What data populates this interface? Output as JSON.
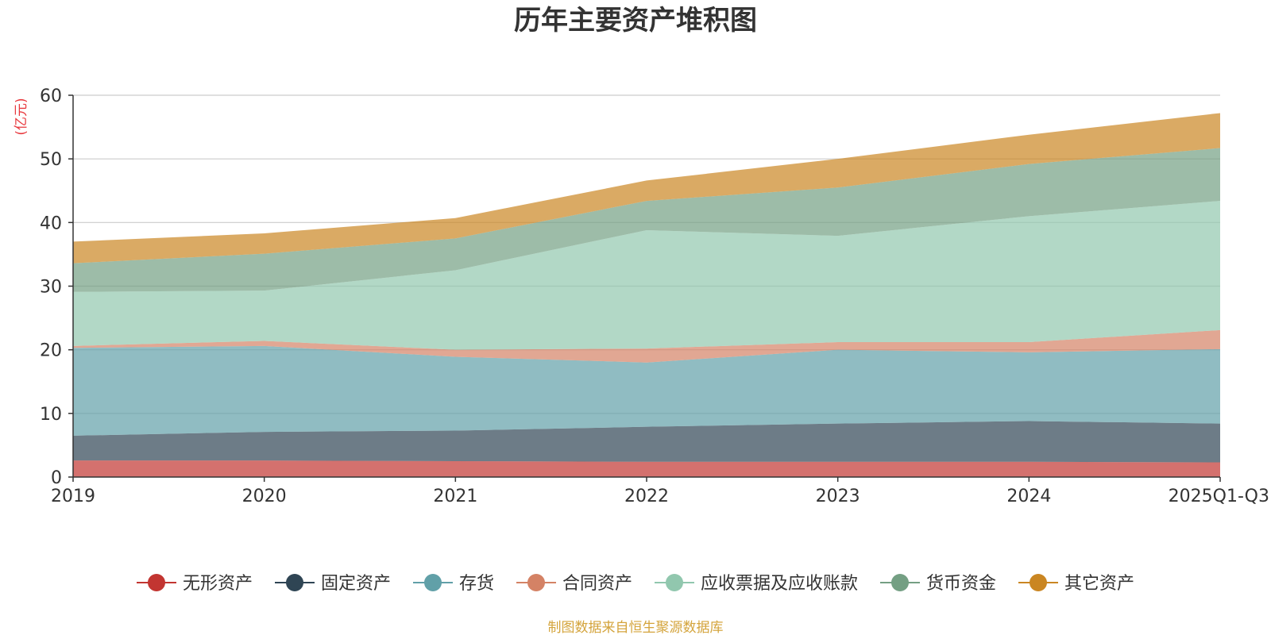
{
  "chart_data": {
    "type": "area",
    "stacked": true,
    "title": "历年主要资产堆积图",
    "unit_label": "(亿元)",
    "source": "制图数据来自恒生聚源数据库",
    "categories": [
      "2019",
      "2020",
      "2021",
      "2022",
      "2023",
      "2024",
      "2025Q1-Q3"
    ],
    "ylim": [
      0,
      60
    ],
    "yticks": [
      0,
      10,
      20,
      30,
      40,
      50,
      60
    ],
    "grid": true,
    "legend_position": "bottom",
    "series": [
      {
        "name": "无形资产",
        "color": "#c23531",
        "values": [
          2.6,
          2.6,
          2.5,
          2.4,
          2.4,
          2.4,
          2.3
        ]
      },
      {
        "name": "固定资产",
        "color": "#2f4554",
        "values": [
          3.9,
          4.5,
          4.8,
          5.5,
          6.0,
          6.4,
          6.1
        ]
      },
      {
        "name": "存货",
        "color": "#61a0a8",
        "values": [
          13.8,
          13.5,
          11.6,
          10.1,
          11.6,
          10.8,
          11.7
        ]
      },
      {
        "name": "合同资产",
        "color": "#d48265",
        "values": [
          0.3,
          0.8,
          1.1,
          2.2,
          1.2,
          1.6,
          3.0
        ]
      },
      {
        "name": "应收票据及应收账款",
        "color": "#91c7ae",
        "values": [
          8.5,
          7.9,
          12.5,
          18.6,
          16.7,
          19.8,
          20.3
        ]
      },
      {
        "name": "货币资金",
        "color": "#749f83",
        "values": [
          4.5,
          5.8,
          5.0,
          4.6,
          7.6,
          8.2,
          8.3
        ]
      },
      {
        "name": "其它资产",
        "color": "#ca8622",
        "values": [
          3.4,
          3.2,
          3.2,
          3.2,
          4.5,
          4.6,
          5.5
        ]
      }
    ]
  }
}
